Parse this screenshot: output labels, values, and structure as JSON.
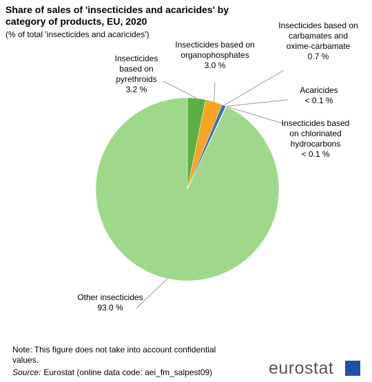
{
  "chart_data": {
    "type": "pie",
    "title": "Share of sales of 'insecticides and acaricides' by category of products, EU, 2020",
    "subtitle": "(% of total 'insecticides and acaricides')",
    "categories": [
      "Insecticides based on pyrethroids",
      "Insecticides based on organophosphates",
      "Insecticides based on carbamates and oxime-carbamate",
      "Acaricides",
      "Insecticides based on chlorinated hydrocarbons",
      "Other insecticides"
    ],
    "values": [
      3.2,
      3.0,
      0.7,
      0.05,
      0.05,
      93.0
    ],
    "value_labels": [
      "3.2 %",
      "3.0 %",
      "0.7 %",
      "< 0.1 %",
      "< 0.1 %",
      "93.0 %"
    ],
    "colors": [
      "#5bb043",
      "#f5a623",
      "#3d6fb6",
      "#8a8a8a",
      "#c0392b",
      "#a0d88b"
    ],
    "note": "Note: This figure does not take into account confidential values.",
    "source_label": "Source:",
    "source": "Eurostat (online data code: aei_fm_salpest09)",
    "logo": "eurostat"
  }
}
